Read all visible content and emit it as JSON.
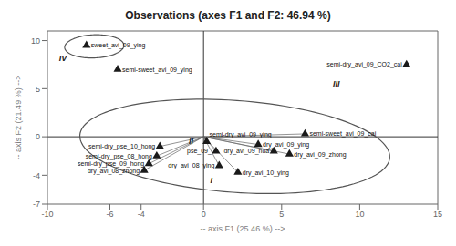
{
  "chart_data": {
    "type": "scatter",
    "title": "Observations (axes F1 and F2: 46.94 %)",
    "xlabel": "-- axis F1 (25.46 %) -->",
    "ylabel": "-- axis F2 (21.49 %) -->",
    "xlim": [
      -10,
      15
    ],
    "ylim": [
      -7,
      11
    ],
    "xticks": [
      -10,
      -6,
      -4,
      0,
      5,
      10,
      15
    ],
    "yticks": [
      -7,
      -4,
      0,
      5,
      10
    ],
    "grid": false,
    "marker": "triangle",
    "color": "#1a1a1a",
    "points": [
      {
        "label": "sweet_avi_09_ying",
        "x": -7.5,
        "y": 9.5
      },
      {
        "label": "semi-sweet_avi_09_ying",
        "x": -5.5,
        "y": 7.0
      },
      {
        "label": "semi-dry_avi_09_CO2_cai",
        "x": 13.0,
        "y": 7.5
      },
      {
        "label": "semi-sweet_avi_09_cai",
        "x": 6.5,
        "y": 0.3
      },
      {
        "label": "semi-dry_avi_09_ying",
        "x": 0.2,
        "y": -0.5
      },
      {
        "label": "dry_avi_09_ying",
        "x": 3.5,
        "y": -0.8
      },
      {
        "label": "dry_avi_09_hua",
        "x": 4.5,
        "y": -1.5
      },
      {
        "label": "dry_avi_09_zhong",
        "x": 5.5,
        "y": -1.8
      },
      {
        "label": "pse_09_",
        "x": 0.8,
        "y": -1.5
      },
      {
        "label": "dry_avi_08_ying",
        "x": 1.0,
        "y": -3.0
      },
      {
        "label": "dry_avi_10_ying",
        "x": 2.2,
        "y": -3.7
      },
      {
        "label": "semi-dry_pse_10_hong",
        "x": -2.8,
        "y": -1.0
      },
      {
        "label": "semi-dry_pse_08_hong",
        "x": -3.0,
        "y": -2.0
      },
      {
        "label": "semi-dry_pse_09_hong",
        "x": -3.5,
        "y": -2.8
      },
      {
        "label": "dry_avi_08_zhong",
        "x": -3.8,
        "y": -3.5
      }
    ],
    "annotations": [
      {
        "text": "I",
        "x": 0.5,
        "y": -4.5
      },
      {
        "text": "II",
        "x": -0.8,
        "y": -0.5
      },
      {
        "text": "III",
        "x": 8.5,
        "y": 5.5
      },
      {
        "text": "IV",
        "x": -9.0,
        "y": 8.2
      }
    ],
    "ellipses": [
      {
        "cx": 2.0,
        "cy": -1.0,
        "width": 20,
        "height": 9.5,
        "angle": -8,
        "color": "#555555"
      },
      {
        "cx": -7.0,
        "cy": 9.4,
        "width": 3.8,
        "height": 2.4,
        "angle": 5,
        "color": "#555555"
      }
    ],
    "connections": {
      "color": "#666666",
      "segments": [
        [
          0.0,
          0.0,
          0.2,
          -0.5
        ],
        [
          0.0,
          0.0,
          3.5,
          -0.8
        ],
        [
          0.0,
          0.0,
          4.5,
          -1.5
        ],
        [
          0.0,
          0.0,
          5.5,
          -1.8
        ],
        [
          0.0,
          0.0,
          1.0,
          -3.0
        ],
        [
          0.0,
          0.0,
          2.2,
          -3.7
        ],
        [
          0.0,
          0.0,
          6.5,
          0.3
        ],
        [
          0.0,
          0.0,
          -2.8,
          -1.0
        ],
        [
          0.0,
          0.0,
          -3.0,
          -2.0
        ],
        [
          0.0,
          0.0,
          -3.5,
          -2.8
        ],
        [
          0.0,
          0.0,
          -3.8,
          -3.5
        ],
        [
          0.0,
          0.0,
          0.8,
          -1.5
        ]
      ]
    }
  }
}
